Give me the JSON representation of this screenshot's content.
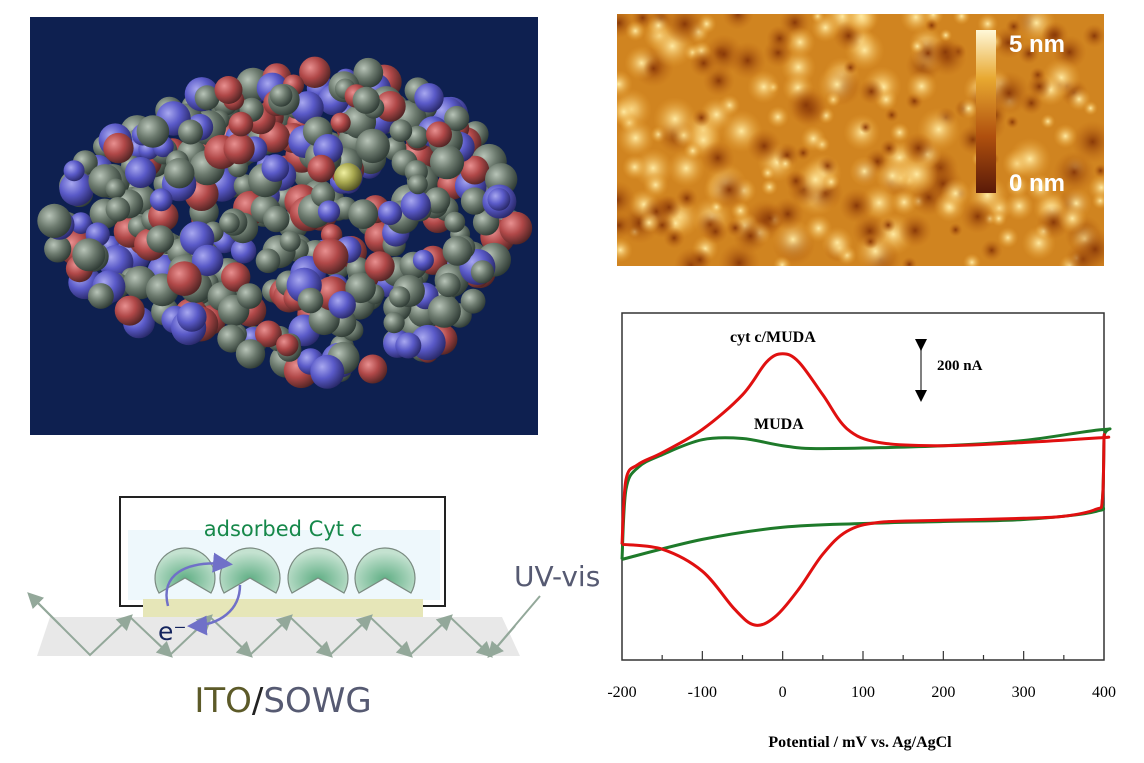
{
  "afm": {
    "colorbar_max_label": "5 nm",
    "colorbar_min_label": "0 nm"
  },
  "schematic": {
    "film_label": "adsorbed Cyt c",
    "electron_label": "e⁻",
    "light_label": "UV-vis",
    "substrate_label_ito": "ITO",
    "substrate_label_slash": "/",
    "substrate_label_sowg": "SOWG",
    "colors": {
      "film_text": "#16884a",
      "ito": "#5c5a28",
      "sowg": "#565a72",
      "electron": "#14245e"
    }
  },
  "chart_data": {
    "type": "line",
    "title": "",
    "xlabel": "Potential  /  mV vs. Ag/AgCl",
    "ylabel": "",
    "xlim": [
      -200,
      400
    ],
    "ylim": [
      -600,
      600
    ],
    "xticks": [
      -200,
      -100,
      0,
      100,
      200,
      300,
      400
    ],
    "xtick_labels": [
      "-200",
      "-100",
      "0",
      "100",
      "200",
      "300",
      "400"
    ],
    "scale_bar_label": "200 nA",
    "scale_bar_value": 200,
    "annotations": [
      "cyt c/MUDA",
      "MUDA"
    ],
    "grid": false,
    "series": [
      {
        "name": "cyt c/MUDA",
        "color": "#e01010",
        "x": [
          -200,
          -195,
          -180,
          -150,
          -100,
          -50,
          -20,
          0,
          20,
          50,
          80,
          120,
          200,
          300,
          398,
          400,
          400,
          398,
          390,
          350,
          300,
          200,
          120,
          80,
          50,
          20,
          -10,
          -35,
          -60,
          -100,
          -150,
          -200
        ],
        "y": [
          -200,
          24,
          76,
          117,
          197,
          317,
          431,
          459,
          431,
          317,
          200,
          152,
          141,
          152,
          169,
          169,
          162,
          -45,
          -79,
          -103,
          -110,
          -117,
          -124,
          -155,
          -234,
          -355,
          -452,
          -479,
          -424,
          -293,
          -217,
          -200
        ]
      },
      {
        "name": "MUDA",
        "color": "#1e7a2a",
        "x": [
          -200,
          -195,
          -180,
          -150,
          -100,
          -50,
          0,
          50,
          200,
          300,
          400,
          400,
          398,
          390,
          300,
          200,
          100,
          0,
          -100,
          -200
        ],
        "y": [
          -252,
          -10,
          66,
          110,
          162,
          166,
          141,
          131,
          141,
          159,
          197,
          169,
          -45,
          -86,
          -114,
          -121,
          -128,
          -141,
          -183,
          -252
        ]
      }
    ]
  }
}
